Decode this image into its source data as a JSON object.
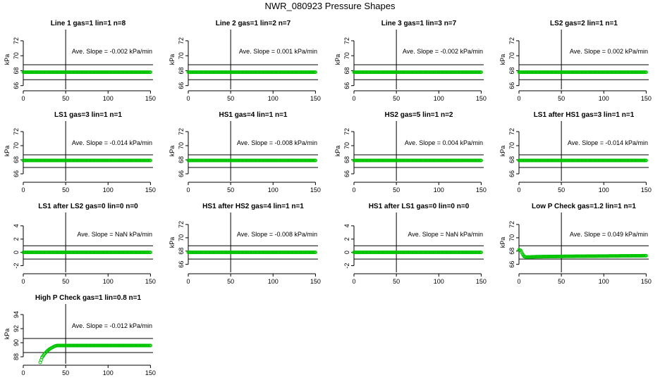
{
  "title": "NWR_080923  Pressure Shapes",
  "colors": {
    "points": "#00c400",
    "lines": "#000000"
  },
  "chart_data": [
    {
      "type": "scatter",
      "title": "Line 1 gas=1 lin=1 n=8",
      "ylabel": "kPa",
      "xlim": [
        0,
        153
      ],
      "ylim": [
        65.5,
        73.5
      ],
      "xticks": [
        0,
        50,
        100,
        150
      ],
      "yticks": [
        66,
        68,
        70,
        72
      ],
      "vline": 50,
      "hlines": [
        66.8,
        68.8
      ],
      "annotation": "Ave. Slope =  -0.002  kPa/min",
      "series": [
        {
          "x": [
            0,
            150
          ],
          "y": [
            67.8,
            67.8
          ]
        }
      ]
    },
    {
      "type": "scatter",
      "title": "Line 2 gas=1 lin=2 n=7",
      "ylabel": "kPa",
      "xlim": [
        0,
        153
      ],
      "ylim": [
        65.5,
        73.5
      ],
      "xticks": [
        0,
        50,
        100,
        150
      ],
      "yticks": [
        66,
        68,
        70,
        72
      ],
      "vline": 50,
      "hlines": [
        66.8,
        68.8
      ],
      "annotation": "Ave. Slope =  0.001  kPa/min",
      "series": [
        {
          "x": [
            0,
            150
          ],
          "y": [
            67.8,
            67.8
          ]
        }
      ]
    },
    {
      "type": "scatter",
      "title": "Line 3 gas=1 lin=3 n=7",
      "ylabel": "kPa",
      "xlim": [
        0,
        153
      ],
      "ylim": [
        65.5,
        73.5
      ],
      "xticks": [
        0,
        50,
        100,
        150
      ],
      "yticks": [
        66,
        68,
        70,
        72
      ],
      "vline": 50,
      "hlines": [
        66.8,
        68.8
      ],
      "annotation": "Ave. Slope =  -0.002  kPa/min",
      "series": [
        {
          "x": [
            0,
            150
          ],
          "y": [
            67.8,
            67.8
          ]
        }
      ]
    },
    {
      "type": "scatter",
      "title": "LS2 gas=2 lin=1 n=1",
      "ylabel": "kPa",
      "xlim": [
        0,
        153
      ],
      "ylim": [
        65.5,
        73.5
      ],
      "xticks": [
        0,
        50,
        100,
        150
      ],
      "yticks": [
        66,
        68,
        70,
        72
      ],
      "vline": 50,
      "hlines": [
        66.8,
        68.8
      ],
      "annotation": "Ave. Slope =  0.002  kPa/min",
      "series": [
        {
          "x": [
            0,
            150
          ],
          "y": [
            67.8,
            67.8
          ]
        }
      ]
    },
    {
      "type": "scatter",
      "title": "LS1 gas=3 lin=1 n=1",
      "ylabel": "kPa",
      "xlim": [
        0,
        153
      ],
      "ylim": [
        65,
        73.5
      ],
      "xticks": [
        0,
        50,
        100,
        150
      ],
      "yticks": [
        66,
        68,
        70,
        72
      ],
      "vline": 50,
      "hlines": [
        66.9,
        68.7
      ],
      "annotation": "Ave. Slope =  -0.014  kPa/min",
      "series": [
        {
          "x": [
            0,
            150
          ],
          "y": [
            67.9,
            67.9
          ]
        }
      ]
    },
    {
      "type": "scatter",
      "title": "HS1 gas=4 lin=1 n=1",
      "ylabel": "kPa",
      "xlim": [
        0,
        153
      ],
      "ylim": [
        65,
        73.5
      ],
      "xticks": [
        0,
        50,
        100,
        150
      ],
      "yticks": [
        66,
        68,
        70,
        72
      ],
      "vline": 50,
      "hlines": [
        66.9,
        68.7
      ],
      "annotation": "Ave. Slope =  -0.008  kPa/min",
      "series": [
        {
          "x": [
            0,
            150
          ],
          "y": [
            67.9,
            67.9
          ]
        }
      ]
    },
    {
      "type": "scatter",
      "title": "HS2 gas=5 lin=1 n=2",
      "ylabel": "kPa",
      "xlim": [
        0,
        153
      ],
      "ylim": [
        65,
        73.5
      ],
      "xticks": [
        0,
        50,
        100,
        150
      ],
      "yticks": [
        66,
        68,
        70,
        72
      ],
      "vline": 50,
      "hlines": [
        66.9,
        68.7
      ],
      "annotation": "Ave. Slope =  0.004  kPa/min",
      "series": [
        {
          "x": [
            0,
            150
          ],
          "y": [
            67.9,
            67.9
          ]
        }
      ]
    },
    {
      "type": "scatter",
      "title": "LS1 after HS1 gas=3 lin=1 n=1",
      "ylabel": "kPa",
      "xlim": [
        0,
        153
      ],
      "ylim": [
        65,
        73.5
      ],
      "xticks": [
        0,
        50,
        100,
        150
      ],
      "yticks": [
        66,
        68,
        70,
        72
      ],
      "vline": 50,
      "hlines": [
        66.9,
        68.7
      ],
      "annotation": "Ave. Slope =  -0.014  kPa/min",
      "series": [
        {
          "x": [
            0,
            150
          ],
          "y": [
            67.9,
            67.9
          ]
        }
      ]
    },
    {
      "type": "scatter",
      "title": "LS1 after LS2 gas=0 lin=0 n=0",
      "ylabel": "",
      "xlim": [
        0,
        153
      ],
      "ylim": [
        -3,
        6
      ],
      "xticks": [
        0,
        50,
        100,
        150
      ],
      "yticks": [
        -2,
        0,
        2,
        4
      ],
      "vline": 50,
      "hlines": [
        -1,
        1
      ],
      "annotation": "Ave. Slope =  NaN  kPa/min",
      "series": [
        {
          "x": [
            0,
            150
          ],
          "y": [
            0,
            0
          ]
        }
      ]
    },
    {
      "type": "scatter",
      "title": "HS1 after HS2 gas=4 lin=1 n=1",
      "ylabel": "kPa",
      "xlim": [
        0,
        153
      ],
      "ylim": [
        64.8,
        73.8
      ],
      "xticks": [
        0,
        50,
        100,
        150
      ],
      "yticks": [
        66,
        68,
        70,
        72
      ],
      "vline": 50,
      "hlines": [
        66.8,
        68.8
      ],
      "annotation": "Ave. Slope =  -0.008  kPa/min",
      "series": [
        {
          "x": [
            0,
            150
          ],
          "y": [
            67.8,
            67.8
          ]
        }
      ]
    },
    {
      "type": "scatter",
      "title": "HS1 after LS1 gas=0 lin=0 n=0",
      "ylabel": "",
      "xlim": [
        0,
        153
      ],
      "ylim": [
        -3,
        6
      ],
      "xticks": [
        0,
        50,
        100,
        150
      ],
      "yticks": [
        -2,
        0,
        2,
        4
      ],
      "vline": 50,
      "hlines": [
        -1,
        1
      ],
      "annotation": "Ave. Slope =  NaN  kPa/min",
      "series": [
        {
          "x": [
            0,
            150
          ],
          "y": [
            0,
            0
          ]
        }
      ]
    },
    {
      "type": "scatter",
      "title": "Low P Check gas=1.2 lin=1 n=1",
      "ylabel": "kPa",
      "xlim": [
        0,
        153
      ],
      "ylim": [
        64.8,
        73.8
      ],
      "xticks": [
        0,
        50,
        100,
        150
      ],
      "yticks": [
        66,
        68,
        70,
        72
      ],
      "vline": 50,
      "hlines": [
        66.8,
        68.8
      ],
      "annotation": "Ave. Slope =  0.049  kPa/min",
      "series": [
        {
          "x": [
            0,
            2,
            4,
            6,
            8,
            12,
            20,
            50,
            100,
            150
          ],
          "y": [
            68.2,
            68.1,
            67.6,
            67.2,
            67.1,
            67.1,
            67.15,
            67.2,
            67.25,
            67.3
          ]
        }
      ]
    },
    {
      "type": "scatter",
      "title": "High P Check gas=1 lin=0.8 n=1",
      "ylabel": "kPa",
      "xlim": [
        0,
        153
      ],
      "ylim": [
        87,
        95.5
      ],
      "xticks": [
        0,
        50,
        100,
        150
      ],
      "yticks": [
        88,
        90,
        92,
        94
      ],
      "vline": 50,
      "hlines": [
        88.6,
        90.6
      ],
      "annotation": "Ave. Slope =  -0.012  kPa/min",
      "series": [
        {
          "x": [
            20,
            22,
            25,
            28,
            31,
            34,
            37,
            40,
            45,
            50,
            100,
            150
          ],
          "y": [
            87.2,
            87.9,
            88.4,
            88.8,
            89.1,
            89.3,
            89.5,
            89.6,
            89.6,
            89.6,
            89.6,
            89.6
          ]
        }
      ]
    }
  ]
}
